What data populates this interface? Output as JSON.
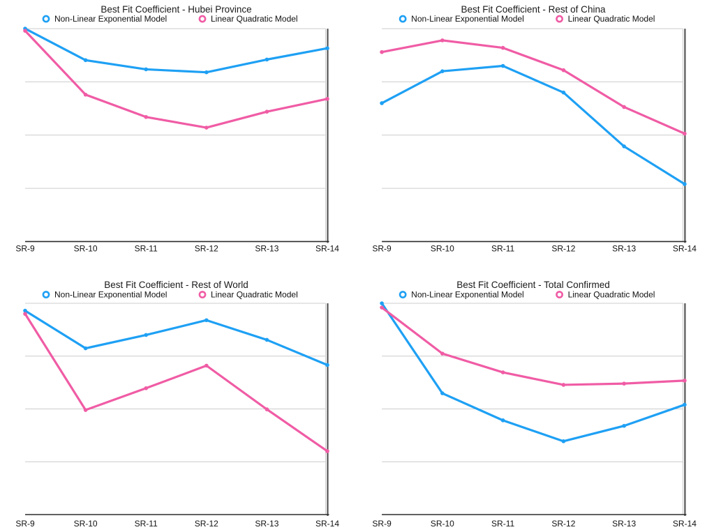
{
  "colors": {
    "nonlinear": "#1EA0F4",
    "quadratic": "#F05CA5",
    "grid": "#cccccc",
    "axis": "#2b2b2b",
    "right_spine": "#555555",
    "text": "#1a1a1a"
  },
  "legend": {
    "nonlinear": "Non-Linear Exponential Model",
    "quadratic": "Linear Quadratic Model"
  },
  "chart_data": [
    {
      "type": "line",
      "title": "Best Fit Coefficient - Hubei Province",
      "categories": [
        "SR-9",
        "SR-10",
        "SR-11",
        "SR-12",
        "SR-13",
        "SR-14"
      ],
      "xlabel": "",
      "ylabel": "",
      "ylim": [
        0,
        1
      ],
      "y_tick_labels": [],
      "gridlines_at": [
        0.25,
        0.5,
        0.75
      ],
      "legend_position": "top",
      "series": [
        {
          "name": "Non-Linear Exponential Model",
          "color": "#1EA0F4",
          "values": [
            1.0,
            0.852,
            0.809,
            0.795,
            0.855,
            0.908
          ]
        },
        {
          "name": "Linear Quadratic Model",
          "color": "#F05CA5",
          "values": [
            0.99,
            0.69,
            0.585,
            0.535,
            0.61,
            0.67
          ]
        }
      ]
    },
    {
      "type": "line",
      "title": "Best Fit Coefficient - Rest of China",
      "categories": [
        "SR-9",
        "SR-10",
        "SR-11",
        "SR-12",
        "SR-13",
        "SR-14"
      ],
      "xlabel": "",
      "ylabel": "",
      "ylim": [
        0,
        1
      ],
      "y_tick_labels": [],
      "gridlines_at": [
        0.25,
        0.5,
        0.75
      ],
      "legend_position": "top",
      "series": [
        {
          "name": "Non-Linear Exponential Model",
          "color": "#1EA0F4",
          "values": [
            0.65,
            0.8,
            0.825,
            0.7,
            0.447,
            0.27
          ]
        },
        {
          "name": "Linear Quadratic Model",
          "color": "#F05CA5",
          "values": [
            0.89,
            0.945,
            0.91,
            0.805,
            0.632,
            0.507
          ]
        }
      ]
    },
    {
      "type": "line",
      "title": "Best Fit Coefficient - Rest of World",
      "categories": [
        "SR-9",
        "SR-10",
        "SR-11",
        "SR-12",
        "SR-13",
        "SR-14"
      ],
      "xlabel": "",
      "ylabel": "",
      "ylim": [
        0,
        1
      ],
      "y_tick_labels": [],
      "gridlines_at": [
        0.25,
        0.5,
        0.75
      ],
      "legend_position": "top",
      "series": [
        {
          "name": "Non-Linear Exponential Model",
          "color": "#1EA0F4",
          "values": [
            0.965,
            0.787,
            0.85,
            0.92,
            0.827,
            0.708
          ]
        },
        {
          "name": "Linear Quadratic Model",
          "color": "#F05CA5",
          "values": [
            0.95,
            0.495,
            0.598,
            0.705,
            0.498,
            0.3
          ]
        }
      ]
    },
    {
      "type": "line",
      "title": "Best Fit Coefficient - Total Confirmed",
      "categories": [
        "SR-9",
        "SR-10",
        "SR-11",
        "SR-12",
        "SR-13",
        "SR-14"
      ],
      "xlabel": "",
      "ylabel": "",
      "ylim": [
        0,
        1
      ],
      "y_tick_labels": [],
      "gridlines_at": [
        0.25,
        0.5,
        0.75
      ],
      "legend_position": "top",
      "series": [
        {
          "name": "Non-Linear Exponential Model",
          "color": "#1EA0F4",
          "values": [
            1.0,
            0.574,
            0.446,
            0.347,
            0.42,
            0.52
          ]
        },
        {
          "name": "Linear Quadratic Model",
          "color": "#F05CA5",
          "values": [
            0.98,
            0.762,
            0.673,
            0.614,
            0.62,
            0.634
          ]
        }
      ]
    }
  ]
}
